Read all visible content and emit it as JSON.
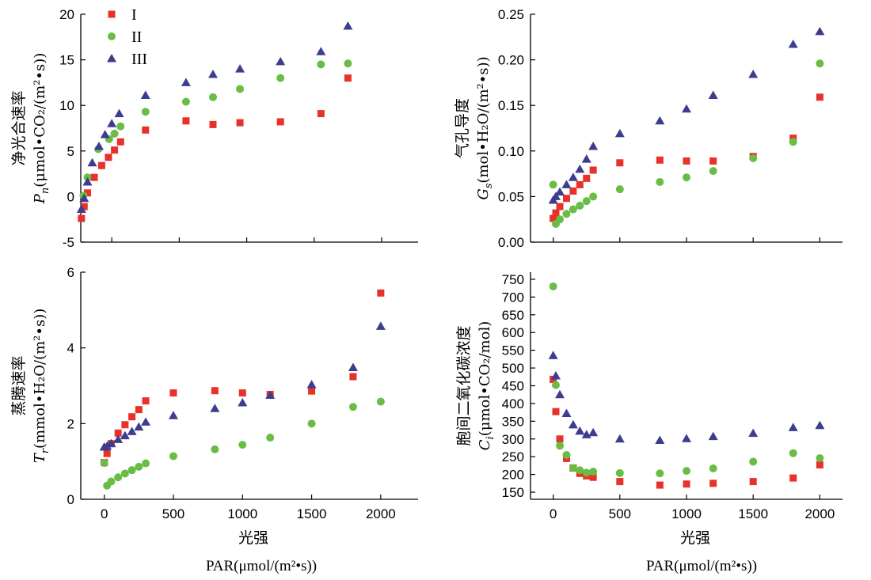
{
  "colors": {
    "I": "#e8312a",
    "II": "#69bd45",
    "III": "#3c3d8f",
    "axis": "#000000"
  },
  "legend": [
    {
      "key": "I",
      "label": "I",
      "marker": "square"
    },
    {
      "key": "II",
      "label": "II",
      "marker": "circle"
    },
    {
      "key": "III",
      "label": "III",
      "marker": "triangle"
    }
  ],
  "bottom_labels": {
    "left_xlabel": "光强",
    "right_xlabel": "光强",
    "left_par": "PAR(μmol/(m²•s))",
    "right_par": "PAR(μmol/(m²•s))"
  },
  "chart_data": [
    {
      "id": "pn",
      "type": "scatter",
      "ylabel_cn": "净光合速率",
      "ylabel_sym": "P",
      "ylabel_sub": "n",
      "ylabel_unit": "(μmol•CO₂/(m²•s))",
      "xlim": [
        -230,
        2270
      ],
      "ylim": [
        -5,
        20
      ],
      "xticks": [
        0,
        500,
        1000,
        1500,
        2000
      ],
      "xtick_labels": [
        "0",
        "500",
        "1000",
        "1500",
        "2000"
      ],
      "show_xtick_labels": false,
      "yticks": [
        -5,
        0,
        5,
        10,
        15,
        20
      ],
      "ytick_labels": [
        "-5",
        "0",
        "5",
        "10",
        "15",
        "20"
      ],
      "grid": false,
      "series": [
        {
          "name": "I",
          "points": [
            [
              -225,
              -2.4
            ],
            [
              -205,
              -1.1
            ],
            [
              -180,
              0.4
            ],
            [
              -130,
              2.1
            ],
            [
              -75,
              3.4
            ],
            [
              -25,
              4.3
            ],
            [
              20,
              5.1
            ],
            [
              65,
              6.0
            ],
            [
              250,
              7.3
            ],
            [
              550,
              8.3
            ],
            [
              750,
              7.9
            ],
            [
              950,
              8.1
            ],
            [
              1250,
              8.2
            ],
            [
              1550,
              9.1
            ],
            [
              1750,
              13.0
            ]
          ]
        },
        {
          "name": "II",
          "points": [
            [
              -210,
              0.1
            ],
            [
              -180,
              2.1
            ],
            [
              -100,
              5.2
            ],
            [
              -20,
              6.3
            ],
            [
              20,
              6.9
            ],
            [
              65,
              7.7
            ],
            [
              250,
              9.3
            ],
            [
              550,
              10.4
            ],
            [
              750,
              10.9
            ],
            [
              950,
              11.8
            ],
            [
              1250,
              13.0
            ],
            [
              1550,
              14.5
            ],
            [
              1750,
              14.6
            ]
          ]
        },
        {
          "name": "III",
          "points": [
            [
              -225,
              -1.4
            ],
            [
              -205,
              -0.2
            ],
            [
              -180,
              1.6
            ],
            [
              -145,
              3.7
            ],
            [
              -95,
              5.5
            ],
            [
              -50,
              6.8
            ],
            [
              0,
              8.0
            ],
            [
              55,
              9.1
            ],
            [
              250,
              11.1
            ],
            [
              550,
              12.5
            ],
            [
              750,
              13.4
            ],
            [
              950,
              14.0
            ],
            [
              1250,
              14.8
            ],
            [
              1550,
              15.9
            ],
            [
              1750,
              18.7
            ]
          ]
        }
      ]
    },
    {
      "id": "gs",
      "type": "scatter",
      "ylabel_cn": "气孔导度",
      "ylabel_sym": "G",
      "ylabel_sub": "s",
      "ylabel_unit": "(mol•H₂O/(m²•s))",
      "xlim": [
        -170,
        2170
      ],
      "ylim": [
        0,
        0.25
      ],
      "xticks": [
        0,
        500,
        1000,
        1500,
        2000
      ],
      "xtick_labels": [
        "0",
        "500",
        "1000",
        "1500",
        "2000"
      ],
      "show_xtick_labels": false,
      "yticks": [
        0,
        0.05,
        0.1,
        0.15,
        0.2,
        0.25
      ],
      "ytick_labels": [
        "0.00",
        "0.05",
        "0.10",
        "0.15",
        "0.20",
        "0.25"
      ],
      "grid": false,
      "series": [
        {
          "name": "I",
          "points": [
            [
              0,
              0.026
            ],
            [
              20,
              0.032
            ],
            [
              50,
              0.039
            ],
            [
              100,
              0.048
            ],
            [
              150,
              0.056
            ],
            [
              200,
              0.063
            ],
            [
              250,
              0.07
            ],
            [
              300,
              0.079
            ],
            [
              500,
              0.087
            ],
            [
              800,
              0.09
            ],
            [
              1000,
              0.089
            ],
            [
              1200,
              0.089
            ],
            [
              1500,
              0.094
            ],
            [
              1800,
              0.114
            ],
            [
              2000,
              0.159
            ]
          ]
        },
        {
          "name": "II",
          "points": [
            [
              0,
              0.063
            ],
            [
              20,
              0.02
            ],
            [
              50,
              0.025
            ],
            [
              100,
              0.031
            ],
            [
              150,
              0.036
            ],
            [
              200,
              0.04
            ],
            [
              250,
              0.045
            ],
            [
              300,
              0.05
            ],
            [
              500,
              0.058
            ],
            [
              800,
              0.066
            ],
            [
              1000,
              0.071
            ],
            [
              1200,
              0.078
            ],
            [
              1500,
              0.092
            ],
            [
              1800,
              0.11
            ],
            [
              2000,
              0.196
            ]
          ]
        },
        {
          "name": "III",
          "points": [
            [
              0,
              0.046
            ],
            [
              20,
              0.05
            ],
            [
              50,
              0.055
            ],
            [
              100,
              0.063
            ],
            [
              150,
              0.071
            ],
            [
              200,
              0.08
            ],
            [
              250,
              0.091
            ],
            [
              300,
              0.105
            ],
            [
              500,
              0.119
            ],
            [
              800,
              0.133
            ],
            [
              1000,
              0.146
            ],
            [
              1200,
              0.161
            ],
            [
              1500,
              0.184
            ],
            [
              1800,
              0.217
            ],
            [
              2000,
              0.231
            ]
          ]
        }
      ]
    },
    {
      "id": "tr",
      "type": "scatter",
      "ylabel_cn": "蒸腾速率",
      "ylabel_sym": "T",
      "ylabel_sub": "r",
      "ylabel_unit": "(mmol•H₂O/(m²•s))",
      "xlim": [
        -170,
        2270
      ],
      "ylim": [
        0,
        6
      ],
      "xticks": [
        0,
        500,
        1000,
        1500,
        2000
      ],
      "xtick_labels": [
        "0",
        "500",
        "1000",
        "1500",
        "2000"
      ],
      "show_xtick_labels": true,
      "yticks": [
        0,
        2,
        4,
        6
      ],
      "ytick_labels": [
        "0",
        "2",
        "4",
        "6"
      ],
      "grid": false,
      "series": [
        {
          "name": "I",
          "points": [
            [
              0,
              0.97
            ],
            [
              20,
              1.21
            ],
            [
              50,
              1.47
            ],
            [
              100,
              1.75
            ],
            [
              150,
              1.97
            ],
            [
              200,
              2.18
            ],
            [
              250,
              2.37
            ],
            [
              300,
              2.6
            ],
            [
              500,
              2.81
            ],
            [
              800,
              2.87
            ],
            [
              1000,
              2.81
            ],
            [
              1200,
              2.77
            ],
            [
              1500,
              2.86
            ],
            [
              1800,
              3.24
            ],
            [
              2000,
              5.45
            ]
          ]
        },
        {
          "name": "II",
          "points": [
            [
              0,
              0.96
            ],
            [
              20,
              0.36
            ],
            [
              50,
              0.47
            ],
            [
              100,
              0.58
            ],
            [
              150,
              0.68
            ],
            [
              200,
              0.77
            ],
            [
              250,
              0.86
            ],
            [
              300,
              0.95
            ],
            [
              500,
              1.14
            ],
            [
              800,
              1.32
            ],
            [
              1000,
              1.44
            ],
            [
              1200,
              1.63
            ],
            [
              1500,
              2.0
            ],
            [
              1800,
              2.44
            ],
            [
              2000,
              2.58
            ]
          ]
        },
        {
          "name": "III",
          "points": [
            [
              0,
              1.38
            ],
            [
              20,
              1.4
            ],
            [
              50,
              1.47
            ],
            [
              100,
              1.58
            ],
            [
              150,
              1.68
            ],
            [
              200,
              1.79
            ],
            [
              250,
              1.91
            ],
            [
              300,
              2.04
            ],
            [
              500,
              2.21
            ],
            [
              800,
              2.4
            ],
            [
              1000,
              2.55
            ],
            [
              1200,
              2.75
            ],
            [
              1500,
              3.03
            ],
            [
              1800,
              3.48
            ],
            [
              2000,
              4.57
            ]
          ]
        }
      ]
    },
    {
      "id": "ci",
      "type": "scatter",
      "ylabel_cn": "胞间二氧化碳浓度",
      "ylabel_sym": "C",
      "ylabel_sub": "i",
      "ylabel_unit": "(μmol•CO₂/mol)",
      "xlim": [
        -170,
        2170
      ],
      "ylim": [
        130,
        770
      ],
      "xticks": [
        0,
        500,
        1000,
        1500,
        2000
      ],
      "xtick_labels": [
        "0",
        "500",
        "1000",
        "1500",
        "2000"
      ],
      "show_xtick_labels": true,
      "yticks": [
        150,
        200,
        250,
        300,
        350,
        400,
        450,
        500,
        550,
        600,
        650,
        700,
        750
      ],
      "ytick_labels": [
        "150",
        "200",
        "250",
        "300",
        "350",
        "400",
        "450",
        "500",
        "550",
        "600",
        "650",
        "700",
        "750"
      ],
      "grid": false,
      "series": [
        {
          "name": "I",
          "points": [
            [
              0,
              468
            ],
            [
              20,
              377
            ],
            [
              50,
              300
            ],
            [
              100,
              245
            ],
            [
              150,
              218
            ],
            [
              200,
              203
            ],
            [
              250,
              196
            ],
            [
              300,
              192
            ],
            [
              500,
              180
            ],
            [
              800,
              170
            ],
            [
              1000,
              173
            ],
            [
              1200,
              175
            ],
            [
              1500,
              180
            ],
            [
              1800,
              190
            ],
            [
              2000,
              227
            ]
          ]
        },
        {
          "name": "II",
          "points": [
            [
              0,
              730
            ],
            [
              20,
              452
            ],
            [
              50,
              281
            ],
            [
              100,
              255
            ],
            [
              150,
              218
            ],
            [
              200,
              212
            ],
            [
              250,
              205
            ],
            [
              300,
              208
            ],
            [
              500,
              204
            ],
            [
              800,
              203
            ],
            [
              1000,
              210
            ],
            [
              1200,
              217
            ],
            [
              1500,
              236
            ],
            [
              1800,
              260
            ],
            [
              2000,
              246
            ]
          ]
        },
        {
          "name": "III",
          "points": [
            [
              0,
              535
            ],
            [
              20,
              478
            ],
            [
              50,
              425
            ],
            [
              100,
              372
            ],
            [
              150,
              340
            ],
            [
              200,
              322
            ],
            [
              250,
              312
            ],
            [
              300,
              318
            ],
            [
              500,
              300
            ],
            [
              800,
              296
            ],
            [
              1000,
              301
            ],
            [
              1200,
              307
            ],
            [
              1500,
              316
            ],
            [
              1800,
              332
            ],
            [
              2000,
              338
            ]
          ]
        }
      ]
    }
  ]
}
